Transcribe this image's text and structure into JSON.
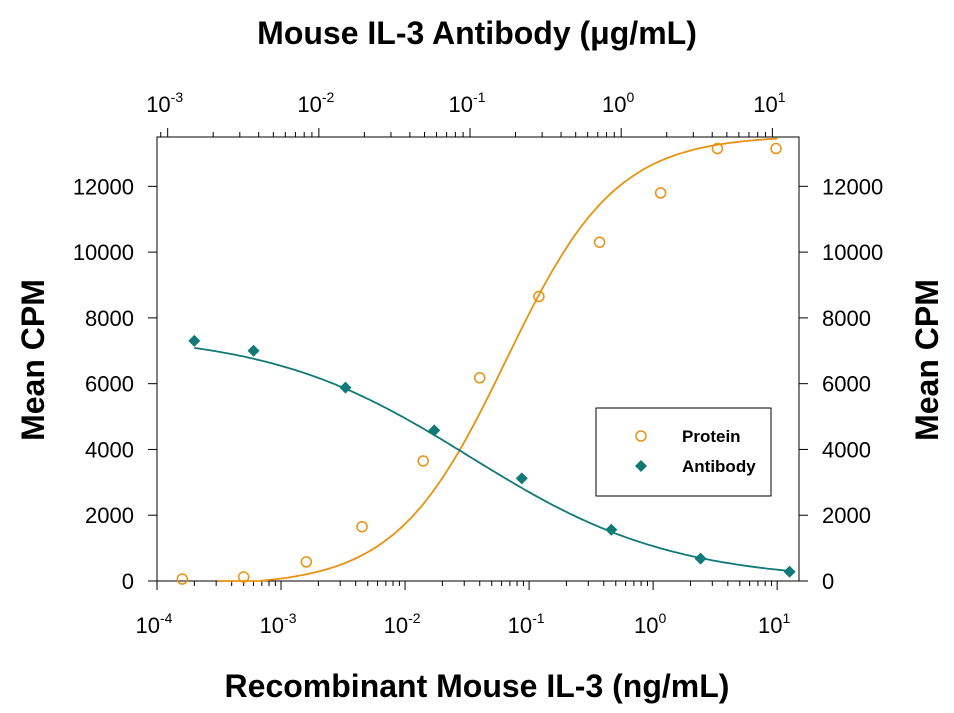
{
  "chart_data": {
    "type": "scatter",
    "title": "Mouse IL-3 Antibody (μg/mL)",
    "xlabel": "Recombinant Mouse IL-3 (ng/mL)",
    "ylabel": "Mean CPM",
    "ylabel_right": "Mean CPM",
    "x_scale": "log",
    "xlim": [
      0.0001,
      15
    ],
    "x_ticks": [
      {
        "base": "10",
        "exp": "-4",
        "value": 0.0001
      },
      {
        "base": "10",
        "exp": "-3",
        "value": 0.001
      },
      {
        "base": "10",
        "exp": "-2",
        "value": 0.01
      },
      {
        "base": "10",
        "exp": "-1",
        "value": 0.1
      },
      {
        "base": "10",
        "exp": "0",
        "value": 1
      },
      {
        "base": "10",
        "exp": "1",
        "value": 10
      }
    ],
    "x2_scale": "log",
    "x2lim": [
      0.00085,
      15
    ],
    "x2_ticks": [
      {
        "base": "10",
        "exp": "-3",
        "value": 0.001
      },
      {
        "base": "10",
        "exp": "-2",
        "value": 0.01
      },
      {
        "base": "10",
        "exp": "-1",
        "value": 0.1
      },
      {
        "base": "10",
        "exp": "0",
        "value": 1
      },
      {
        "base": "10",
        "exp": "1",
        "value": 10
      }
    ],
    "ylim": [
      0,
      13500
    ],
    "y_ticks": [
      "0",
      "2000",
      "4000",
      "6000",
      "8000",
      "10000",
      "12000"
    ],
    "grid": false,
    "legend_position": "center-right",
    "series": [
      {
        "name": "Protein",
        "axis": "bottom",
        "marker": "open-circle",
        "color": "#E8920F",
        "x": [
          0.00016,
          0.0005,
          0.0016,
          0.0045,
          0.014,
          0.04,
          0.12,
          0.37,
          1.15,
          3.3,
          9.8
        ],
        "y": [
          60,
          120,
          580,
          1650,
          3650,
          6180,
          8650,
          10300,
          11800,
          13150,
          13150
        ],
        "fit": {
          "model": "4PL",
          "bottom": -150,
          "top": 13550,
          "ec50": 0.065,
          "hill": 0.98
        }
      },
      {
        "name": "Antibody",
        "axis": "top",
        "marker": "filled-diamond",
        "color": "#0F7A78",
        "x": [
          0.0015,
          0.0037,
          0.015,
          0.058,
          0.22,
          0.86,
          3.35,
          13.0
        ],
        "y": [
          7300,
          7000,
          5880,
          4580,
          3120,
          1560,
          680,
          280
        ],
        "fit": {
          "model": "4PL",
          "bottom": 0,
          "top": 7550,
          "ec50": 0.1,
          "hill": 0.65
        }
      }
    ]
  }
}
